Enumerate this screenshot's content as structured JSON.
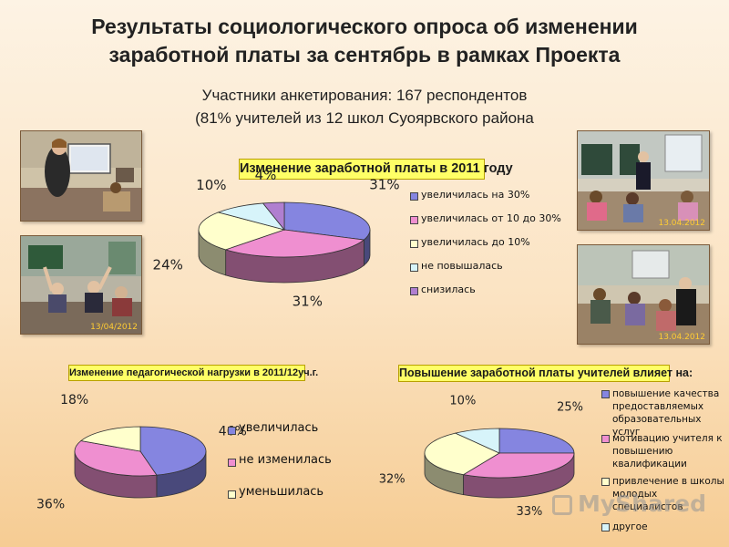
{
  "header": {
    "title_line1": "Результаты социологического опроса об изменении",
    "title_line2": "заработной платы за сентябрь в рамках Проекта",
    "subtitle_line1": "Участники анкетирования: 167 респондентов",
    "subtitle_line2": "(81% учителей из 12 школ Суоярвского района"
  },
  "photos": {
    "photo2_stamp": "13/04/2012",
    "photo3_stamp": "13.04.2012",
    "photo4_stamp": "13.04.2012"
  },
  "colors": {
    "blue": "#8585e0",
    "pink": "#ef8fd0",
    "cream": "#ffffcc",
    "cyan": "#d7f4fa",
    "purple": "#b07fd0",
    "title_bg": "#ffff66"
  },
  "chart_data": [
    {
      "type": "pie",
      "title": "Изменение заработной платы в 2011 году",
      "categories": [
        "увеличилась на 30%",
        "увеличилась от 10 до 30%",
        "увеличилась  до 10%",
        "не повышалась",
        "снизилась"
      ],
      "values": [
        31,
        31,
        24,
        10,
        4
      ],
      "value_labels": [
        "31%",
        "31%",
        "24%",
        "10%",
        "4%"
      ],
      "legend_position": "right"
    },
    {
      "type": "pie",
      "title": "Изменение педагогической нагрузки в 2011/12уч.г.",
      "categories": [
        "увеличилась",
        "не изменилась",
        "уменьшилась"
      ],
      "values": [
        46,
        36,
        18
      ],
      "value_labels": [
        "46%",
        "36%",
        "18%"
      ],
      "legend_position": "right"
    },
    {
      "type": "pie",
      "title": "Повышение заработной платы учителей влияет на:",
      "categories": [
        "повышение качества предоставляемых образовательных услуг",
        "мотивацию учителя к повышению квалификации",
        "привлечение в школы молодых специалистов",
        "другое"
      ],
      "values": [
        25,
        33,
        32,
        10
      ],
      "value_labels": [
        "25%",
        "33%",
        "32%",
        "10%"
      ],
      "legend_position": "right"
    }
  ],
  "legend1": {
    "items": [
      "увеличилась на 30%",
      "увеличилась от 10 до 30%",
      "увеличилась  до 10%",
      "не повышалась",
      "снизилась"
    ]
  },
  "legend2": {
    "items": [
      "увеличилась",
      "не изменилась",
      "уменьшилась"
    ]
  },
  "legend3": {
    "item1_line1": "повышение качества",
    "item1_line2": "предоставляемых",
    "item1_line3": "образовательных услуг",
    "item2_line1": "мотивацию учителя к",
    "item2_line2": "повышению квалификации",
    "item3_line1": "привлечение в школы",
    "item3_line2": "молодых специалистов",
    "item4_line1": "другое"
  },
  "watermark": {
    "text": "MyShared"
  }
}
